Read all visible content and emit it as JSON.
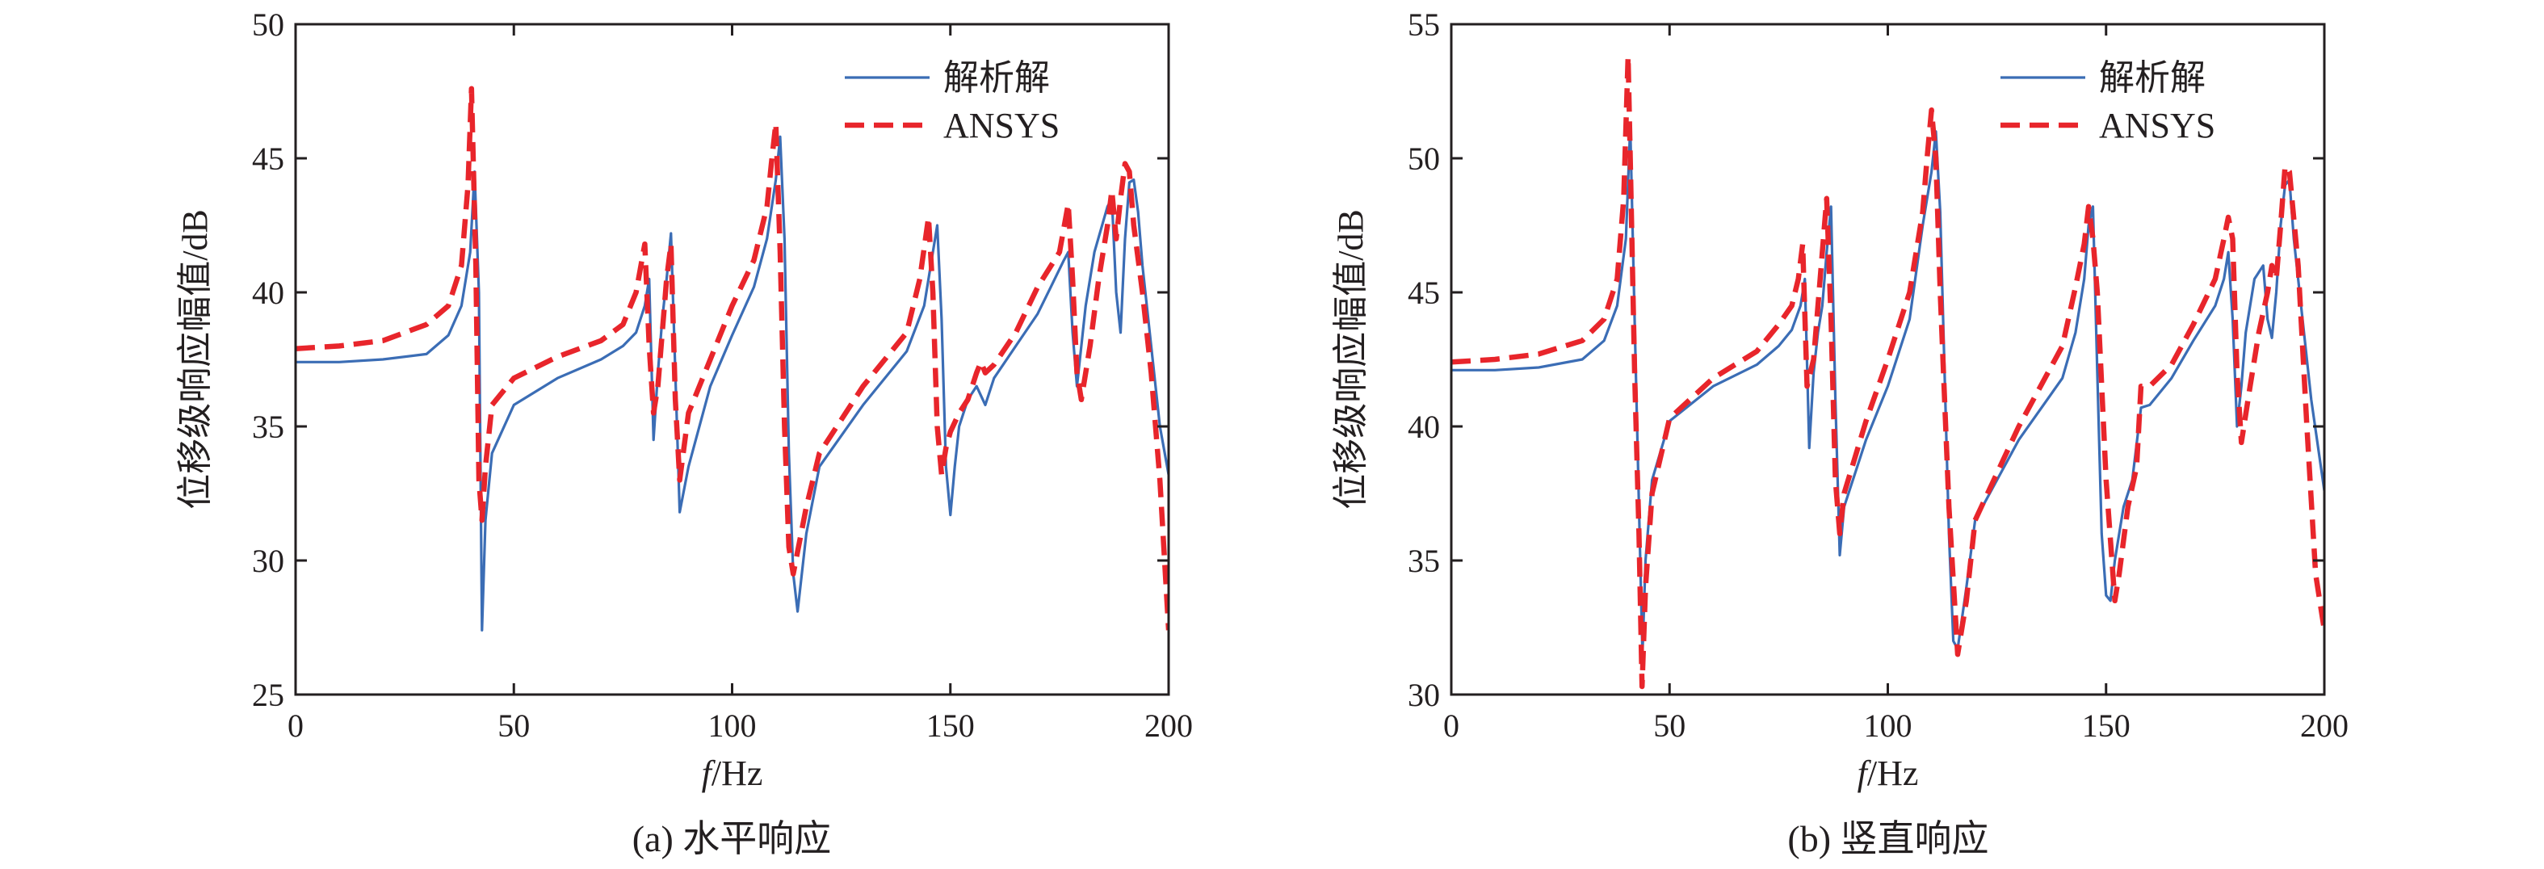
{
  "chart_data": [
    {
      "type": "line",
      "caption": "(a) 水平响应",
      "xlabel_italic": "f",
      "xlabel_rest": "/Hz",
      "ylabel": "位移级响应幅值/dB",
      "xlim": [
        0,
        200
      ],
      "ylim": [
        25,
        50
      ],
      "xticks": [
        "0",
        "50",
        "100",
        "150",
        "200"
      ],
      "yticks": [
        "25",
        "30",
        "35",
        "40",
        "45",
        "50"
      ],
      "legend_position": "top-right",
      "series": [
        {
          "name": "解析解",
          "color": "#3b6db5",
          "dash": "solid",
          "x": [
            0,
            10,
            20,
            30,
            35,
            38,
            40,
            41,
            42,
            42.7,
            43.5,
            45,
            50,
            60,
            70,
            75,
            78,
            80,
            81,
            82,
            83,
            84,
            85,
            86,
            87,
            88,
            90,
            95,
            100,
            105,
            108,
            110,
            111,
            112,
            113,
            114,
            115,
            117,
            120,
            130,
            140,
            144,
            146,
            147,
            148,
            149,
            150,
            151,
            152,
            154,
            156,
            158,
            160,
            165,
            170,
            173,
            176,
            177,
            178,
            179,
            180,
            181,
            183,
            186,
            187,
            188,
            189,
            190,
            191,
            192,
            193,
            194,
            196,
            198,
            200
          ],
          "y": [
            37.4,
            37.4,
            37.5,
            37.7,
            38.4,
            39.5,
            41.5,
            44.5,
            40,
            27.4,
            31.5,
            34,
            35.8,
            36.8,
            37.5,
            38,
            38.5,
            39.5,
            40.5,
            34.5,
            37,
            39,
            40.5,
            42.2,
            37,
            31.8,
            33.5,
            36.5,
            38.4,
            40.2,
            42,
            44.2,
            45.8,
            42,
            34,
            29.5,
            28.1,
            31,
            33.5,
            35.8,
            37.8,
            39.5,
            41.5,
            42.5,
            39,
            33.5,
            31.7,
            33.5,
            35,
            36,
            36.5,
            35.8,
            36.8,
            38,
            39.2,
            40.2,
            41.2,
            41.5,
            38.5,
            36.5,
            38,
            39.5,
            41.5,
            43.2,
            43.5,
            40,
            38.5,
            42,
            44.1,
            44.2,
            43,
            41,
            38,
            35,
            33.2
          ]
        },
        {
          "name": "ANSYS",
          "color": "#e8252b",
          "dash": "dashed",
          "x": [
            0,
            10,
            20,
            30,
            35,
            38,
            39.5,
            40.3,
            41.3,
            42,
            42.7,
            43.5,
            45,
            50,
            60,
            70,
            75,
            78,
            80,
            81,
            82,
            83,
            84,
            85,
            86,
            87,
            88,
            90,
            95,
            100,
            105,
            108,
            109,
            110,
            111,
            112,
            113,
            114,
            117,
            120,
            130,
            140,
            143,
            145,
            146,
            147,
            148,
            149,
            150,
            152,
            154,
            156,
            157,
            158,
            160,
            165,
            170,
            175,
            177,
            178,
            179,
            180,
            182,
            184,
            186,
            187,
            188,
            189,
            190,
            191,
            192,
            194,
            196,
            198,
            200
          ],
          "y": [
            37.9,
            38,
            38.2,
            38.8,
            39.5,
            41,
            44,
            47.6,
            41,
            33,
            31.5,
            33.5,
            35.8,
            36.8,
            37.6,
            38.2,
            38.8,
            40,
            41.8,
            38,
            35.5,
            36.5,
            38.5,
            40.5,
            41.8,
            36,
            33,
            35.5,
            37.5,
            39.5,
            41.2,
            43.2,
            44.8,
            46.3,
            41.5,
            35,
            30.5,
            29.5,
            32,
            34,
            36.5,
            38.5,
            40.5,
            42.8,
            40,
            35,
            33.2,
            34.2,
            34.8,
            35.5,
            36,
            37,
            37.4,
            37,
            37.3,
            38.5,
            40.2,
            41.5,
            43.3,
            40.5,
            37,
            36,
            38,
            40.5,
            42.5,
            43.8,
            42,
            43.5,
            44.8,
            44.5,
            42.5,
            40,
            37,
            33,
            27.4
          ]
        }
      ]
    },
    {
      "type": "line",
      "caption": "(b) 竖直响应",
      "xlabel_italic": "f",
      "xlabel_rest": "/Hz",
      "ylabel": "位移级响应幅值/dB",
      "xlim": [
        0,
        200
      ],
      "ylim": [
        30,
        55
      ],
      "xticks": [
        "0",
        "50",
        "100",
        "150",
        "200"
      ],
      "yticks": [
        "30",
        "35",
        "40",
        "45",
        "50",
        "55"
      ],
      "legend_position": "top-right",
      "series": [
        {
          "name": "解析解",
          "color": "#3b6db5",
          "dash": "solid",
          "x": [
            0,
            10,
            20,
            30,
            35,
            38,
            40,
            41,
            42,
            43,
            43.8,
            44.5,
            46,
            50,
            60,
            70,
            75,
            78,
            80,
            81,
            82,
            83,
            84,
            85,
            86,
            87,
            88,
            89,
            90,
            95,
            100,
            105,
            108,
            110,
            111,
            112,
            113,
            114,
            115,
            116,
            118,
            120,
            130,
            140,
            143,
            145,
            146,
            147,
            148,
            149,
            150,
            151,
            152,
            154,
            156,
            158,
            160,
            165,
            170,
            175,
            177,
            178,
            179,
            180,
            181,
            182,
            184,
            186,
            187,
            188,
            189,
            190,
            191,
            192,
            193,
            195,
            197,
            200
          ],
          "y": [
            42.1,
            42.1,
            42.2,
            42.5,
            43.2,
            44.5,
            47,
            51.2,
            44,
            37,
            31.5,
            35,
            38,
            40.2,
            41.5,
            42.3,
            43,
            43.6,
            44.5,
            45.5,
            39.2,
            42,
            43.5,
            44.5,
            46.5,
            48.2,
            41,
            35.2,
            37,
            39.5,
            41.5,
            44,
            47.5,
            49.5,
            51,
            48,
            42,
            36,
            32,
            31.7,
            34,
            36.5,
            39.5,
            41.8,
            43.5,
            45.5,
            47.5,
            48.2,
            42,
            36,
            33.7,
            33.5,
            35,
            37,
            38,
            40.7,
            40.8,
            41.8,
            43.2,
            44.5,
            45.5,
            46.5,
            44,
            40,
            41.5,
            43.5,
            45.5,
            46,
            44,
            43.3,
            45,
            47.5,
            49,
            49.2,
            47,
            44,
            41,
            37.6
          ]
        },
        {
          "name": "ANSYS",
          "color": "#e8252b",
          "dash": "dashed",
          "x": [
            0,
            10,
            20,
            30,
            35,
            38,
            39.5,
            40.5,
            41,
            42,
            43,
            43.7,
            44.5,
            46,
            50,
            60,
            70,
            75,
            78,
            79.5,
            80.5,
            81.5,
            83,
            84,
            85,
            86,
            87,
            88,
            89,
            90,
            95,
            100,
            105,
            108,
            109,
            110,
            111,
            112,
            114,
            116,
            118,
            120,
            130,
            140,
            143,
            145,
            146,
            147,
            148,
            150,
            152,
            153,
            155,
            157,
            158,
            160,
            165,
            170,
            175,
            177,
            178,
            179,
            180,
            181,
            183,
            185,
            187,
            188,
            189,
            190,
            191,
            192,
            194,
            196,
            198,
            200
          ],
          "y": [
            42.4,
            42.5,
            42.7,
            43.2,
            44,
            45.5,
            48.5,
            53.8,
            50,
            42,
            36,
            30.3,
            34,
            37.5,
            40.3,
            41.8,
            42.8,
            43.8,
            44.5,
            45.5,
            46.8,
            41.5,
            42.5,
            44.5,
            46.5,
            48.5,
            44,
            38,
            36,
            37.5,
            40.2,
            42.5,
            45,
            48,
            50,
            51.8,
            50,
            45,
            37,
            31.5,
            33.5,
            36.5,
            40,
            43,
            45.2,
            46.8,
            48.2,
            47,
            45,
            38,
            33.5,
            34.5,
            37,
            38.5,
            41.5,
            41.5,
            42.3,
            43.8,
            45.5,
            47,
            47.8,
            47,
            42,
            39.4,
            41.5,
            43.5,
            45,
            46,
            45.5,
            47.5,
            49.7,
            49.5,
            46,
            40,
            34.5,
            32.4
          ]
        }
      ]
    }
  ]
}
